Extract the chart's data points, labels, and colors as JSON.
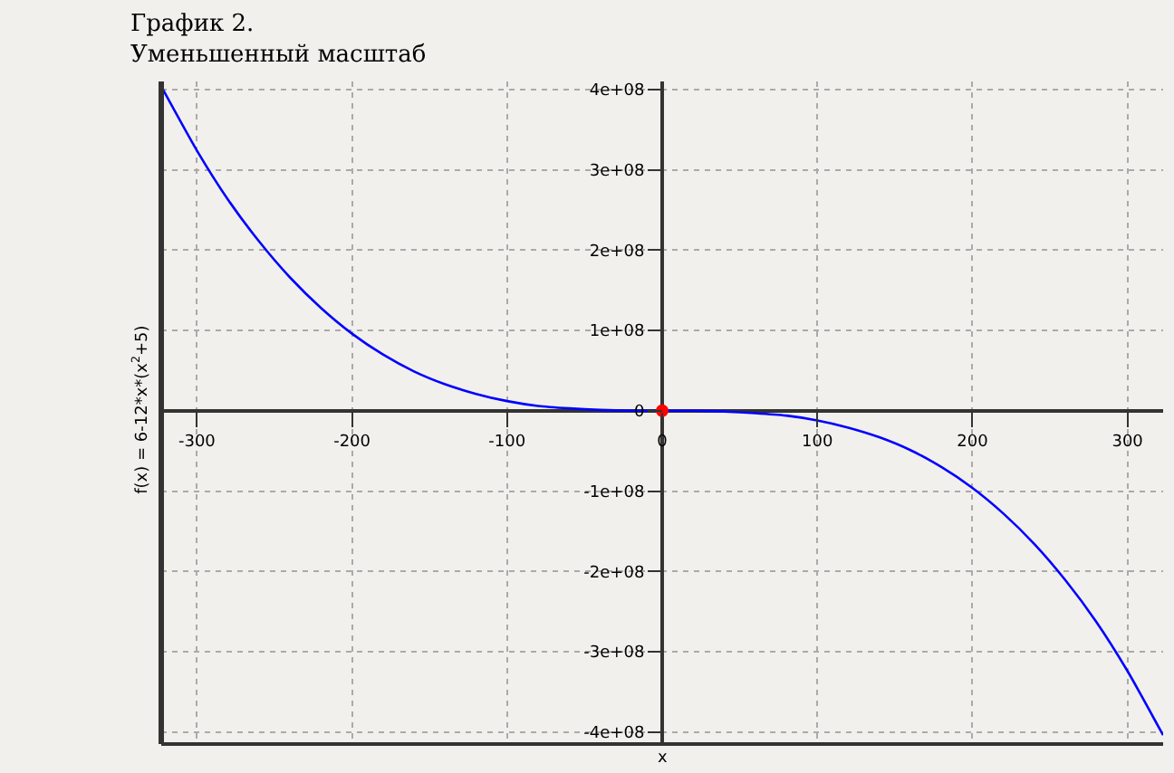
{
  "chart_data": {
    "type": "line",
    "title": "График 2.\nУменьшенный масштаб",
    "xlabel": "x",
    "ylabel": "f(x) = 6-12*x*(x$^{2}$+5)",
    "x": [
      -323,
      -300,
      -280,
      -260,
      -240,
      -220,
      -200,
      -180,
      -160,
      -140,
      -120,
      -100,
      -80,
      -60,
      -40,
      -20,
      0,
      20,
      40,
      60,
      80,
      100,
      120,
      140,
      160,
      180,
      200,
      220,
      240,
      260,
      280,
      300,
      323
    ],
    "series": [
      {
        "color": "#0000ff",
        "values": [
          404000000,
          324000000,
          263000000,
          211000000,
          166000000,
          128000000,
          96000000,
          70000000,
          49000000,
          33000000,
          21000000,
          12000000,
          6000000,
          3000000,
          1000000,
          0,
          0,
          0,
          -1000000,
          -3000000,
          -6000000,
          -12000000,
          -21000000,
          -33000000,
          -49000000,
          -70000000,
          -96000000,
          -128000000,
          -166000000,
          -211000000,
          -263000000,
          -324000000,
          -404000000
        ]
      },
      {
        "type": "scatter",
        "color": "#ff0000",
        "marker": "circle",
        "x": [
          0
        ],
        "values": [
          0
        ]
      }
    ],
    "xlim": [
      -323,
      323
    ],
    "ylim": [
      -415000000,
      410000000
    ],
    "xticks": [
      -300,
      -200,
      -100,
      0,
      100,
      200,
      300
    ],
    "yticks": [
      {
        "value": -400000000,
        "label": "-4e+08"
      },
      {
        "value": -300000000,
        "label": "-3e+08"
      },
      {
        "value": -200000000,
        "label": "-2e+08"
      },
      {
        "value": -100000000,
        "label": "-1e+08"
      },
      0,
      {
        "value": 100000000,
        "label": "1e+08"
      },
      {
        "value": 200000000,
        "label": "2e+08"
      },
      {
        "value": 300000000,
        "label": "3e+08"
      },
      {
        "value": 400000000,
        "label": "4e+08"
      }
    ],
    "grid": true,
    "line_style": "solid"
  }
}
